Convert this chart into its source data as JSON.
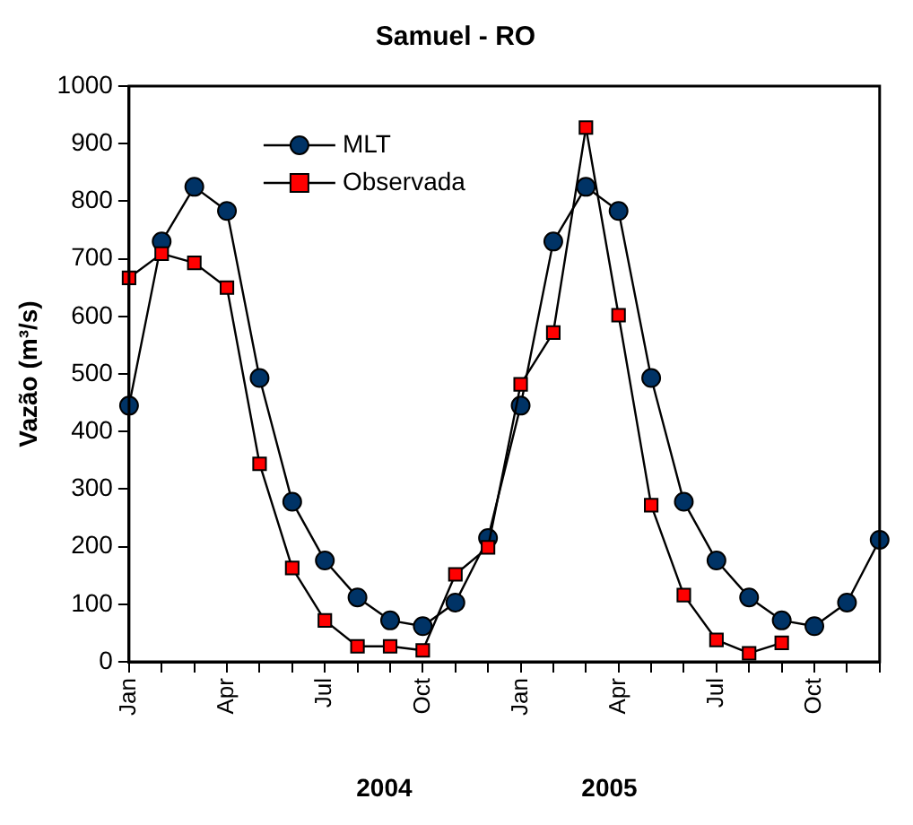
{
  "chart_data": {
    "type": "line",
    "title": "Samuel - RO",
    "ylabel": "Vazão (m³/s)",
    "categories": [
      "Jan",
      null,
      null,
      "Apr",
      null,
      null,
      "Jul",
      null,
      null,
      "Oct",
      null,
      null,
      "Jan",
      null,
      null,
      "Apr",
      null,
      null,
      "Jul",
      null,
      null,
      "Oct",
      null,
      null
    ],
    "series": [
      {
        "name": "MLT",
        "color": "#003366",
        "marker": "circle",
        "values": [
          445,
          730,
          825,
          783,
          493,
          278,
          176,
          112,
          72,
          62,
          103,
          215,
          445,
          730,
          825,
          783,
          493,
          278,
          176,
          112,
          72,
          62,
          103,
          212
        ]
      },
      {
        "name": "Observada",
        "color": "#ff0000",
        "marker": "square",
        "values": [
          667,
          709,
          693,
          650,
          344,
          163,
          72,
          27,
          27,
          20,
          152,
          199,
          482,
          572,
          928,
          602,
          272,
          116,
          38,
          15,
          33,
          null,
          null,
          null
        ]
      }
    ],
    "ylim": [
      0,
      1000
    ],
    "yticks": [
      0,
      100,
      200,
      300,
      400,
      500,
      600,
      700,
      800,
      900,
      1000
    ],
    "grid": false,
    "legend": "top left",
    "line_style": "solid",
    "annotations": [
      "2004",
      "2005"
    ]
  }
}
